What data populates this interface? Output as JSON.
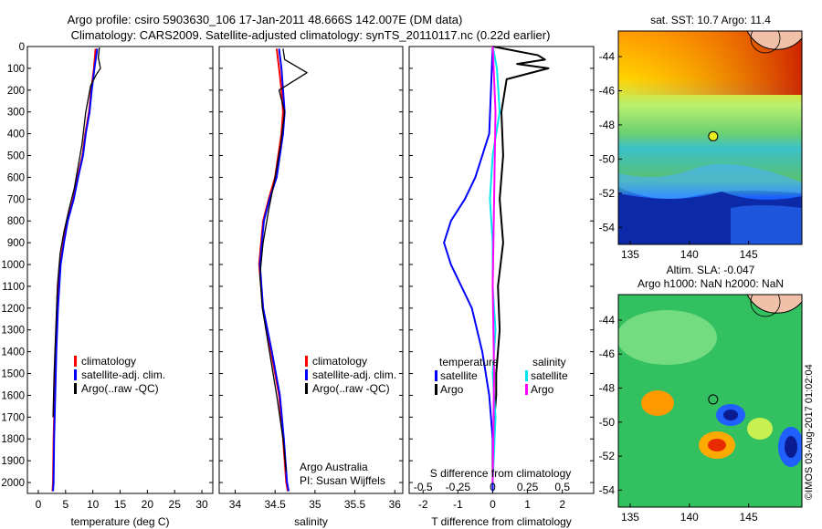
{
  "title_line1": "Argo profile: csiro 5903630_106 17-Jan-2011 48.666S 142.007E (DM data)",
  "title_line2": "Climatology: CARS2009. Satellite-adjusted climatology: synTS_20110117.nc (0.22d earlier)",
  "credit": "Argo Australia",
  "pi": "PI: Susan Wijffels",
  "stamp": "©IMOS 03-Aug-2017 01:02:04",
  "colors": {
    "climatology": "#ff0000",
    "satellite": "#0000ff",
    "argo": "#000000",
    "sal_satellite": "#00e5ee",
    "sal_argo": "#ff00ff"
  },
  "chart_data": [
    {
      "type": "line",
      "xlabel": "temperature (deg C)",
      "xlim": [
        -2,
        32
      ],
      "xticks": [
        "0",
        "5",
        "10",
        "15",
        "20",
        "25",
        "30"
      ],
      "ylim": [
        0,
        2050
      ],
      "yticks": [
        "0",
        "100",
        "200",
        "300",
        "400",
        "500",
        "600",
        "700",
        "800",
        "900",
        "1000",
        "1100",
        "1200",
        "1300",
        "1400",
        "1500",
        "1600",
        "1700",
        "1800",
        "1900",
        "2000"
      ],
      "legend": [
        "climatology",
        "satellite-adj. clim.",
        "Argo(..raw -QC)"
      ],
      "series": [
        {
          "name": "climatology",
          "x": [
            10.5,
            10.2,
            9.7,
            9.3,
            8.6,
            8.1,
            7.2,
            6.4,
            5.3,
            4.6,
            4.0,
            3.5,
            3.2,
            3.0,
            2.8,
            2.7,
            2.6
          ],
          "y": [
            10,
            100,
            200,
            300,
            400,
            500,
            600,
            700,
            800,
            900,
            1000,
            1200,
            1400,
            1600,
            1800,
            2000,
            2040
          ]
        },
        {
          "name": "satellite-adj. clim.",
          "x": [
            10.8,
            10.3,
            9.8,
            9.4,
            8.7,
            8.2,
            7.3,
            6.5,
            5.4,
            4.7,
            4.1,
            3.6,
            3.3,
            3.1,
            2.9,
            2.8,
            2.7
          ],
          "y": [
            10,
            100,
            200,
            300,
            400,
            500,
            600,
            700,
            800,
            900,
            1000,
            1200,
            1400,
            1600,
            1800,
            2000,
            2040
          ]
        },
        {
          "name": "Argo(..raw -QC)",
          "x": [
            11.2,
            11.0,
            11.4,
            10.6,
            9.6,
            8.7,
            8.0,
            7.3,
            6.6,
            5.6,
            4.7,
            4.0,
            3.5,
            3.2,
            2.9,
            2.7
          ],
          "y": [
            5,
            50,
            100,
            130,
            180,
            300,
            450,
            550,
            650,
            750,
            850,
            950,
            1100,
            1300,
            1500,
            1700
          ]
        }
      ]
    },
    {
      "type": "line",
      "xlabel": "salinity",
      "xlim": [
        33.8,
        36.1
      ],
      "xticks": [
        "34",
        "34.5",
        "35",
        "35.5",
        "36"
      ],
      "ylim": [
        0,
        2050
      ],
      "legend": [
        "climatology",
        "satellite-adj. clim.",
        "Argo(..raw -QC)"
      ],
      "series": [
        {
          "name": "climatology",
          "x": [
            34.52,
            34.55,
            34.58,
            34.6,
            34.58,
            34.5,
            34.42,
            34.35,
            34.3,
            34.35,
            34.45,
            34.55,
            34.6,
            34.64,
            34.66
          ],
          "y": [
            10,
            100,
            200,
            300,
            400,
            600,
            700,
            800,
            1000,
            1200,
            1400,
            1600,
            1800,
            2000,
            2040
          ]
        },
        {
          "name": "satellite-adj. clim.",
          "x": [
            34.55,
            34.58,
            34.6,
            34.62,
            34.6,
            34.52,
            34.43,
            34.36,
            34.31,
            34.35,
            34.46,
            34.56,
            34.61,
            34.65,
            34.67
          ],
          "y": [
            10,
            100,
            200,
            300,
            400,
            600,
            700,
            800,
            1000,
            1200,
            1400,
            1600,
            1800,
            2000,
            2040
          ]
        },
        {
          "name": "Argo(..raw -QC)",
          "x": [
            34.6,
            34.62,
            34.9,
            34.55,
            34.62,
            34.57,
            34.5,
            34.42,
            34.35,
            34.31,
            34.34,
            34.43,
            34.52,
            34.6,
            34.64
          ],
          "y": [
            10,
            60,
            120,
            200,
            300,
            450,
            600,
            750,
            900,
            1050,
            1200,
            1400,
            1600,
            1800,
            1950
          ]
        }
      ]
    },
    {
      "type": "line",
      "xlabel": "T difference from climatology",
      "xticks": [
        "-2",
        "-1",
        "0",
        "1",
        "2"
      ],
      "x2label": "S difference from climatology",
      "x2ticks": [
        "-0.5",
        "-0.25",
        "0",
        "0.25",
        "0.5"
      ],
      "xlim": [
        -2.4,
        2.9
      ],
      "ylim": [
        0,
        2050
      ],
      "legend_titles": [
        "temperature",
        "salinity"
      ],
      "legend": [
        "satellite",
        "Argo",
        "satellite",
        "Argo"
      ],
      "series": [
        {
          "name": "satellite",
          "x": [
            0,
            -0.05,
            -0.1,
            -0.3,
            -0.5,
            -0.8,
            -1.2,
            -1.4,
            -1.2,
            -0.9,
            -0.6,
            -0.3,
            -0.1,
            0,
            0
          ],
          "y": [
            0,
            200,
            400,
            500,
            600,
            700,
            800,
            900,
            1000,
            1100,
            1200,
            1400,
            1600,
            1800,
            2040
          ]
        },
        {
          "name": "Argo",
          "x": [
            0,
            1.3,
            1.5,
            0.7,
            1.6,
            0.4,
            0.25,
            0.3,
            0.2,
            0.3,
            0.15,
            0.2,
            0.1,
            0.1,
            0.05,
            0,
            0
          ],
          "y": [
            0,
            40,
            60,
            80,
            100,
            150,
            300,
            500,
            700,
            900,
            1100,
            1300,
            1500,
            1600,
            1700,
            1900,
            2000
          ]
        },
        {
          "name": "satellite",
          "x": [
            0,
            0.03,
            0.05,
            0,
            -0.02,
            0,
            0,
            0.02,
            0,
            0.02,
            0
          ],
          "y": [
            0,
            100,
            300,
            500,
            700,
            900,
            1100,
            1300,
            1500,
            1700,
            2000
          ]
        },
        {
          "name": "Argo",
          "x": [
            0,
            0.02,
            0.01,
            0,
            0.01,
            0
          ],
          "y": [
            0,
            300,
            700,
            1100,
            1500,
            2000
          ]
        }
      ]
    },
    {
      "type": "heatmap",
      "title": "sat. SST: 10.7  Argo: 11.4",
      "xticks": [
        "135",
        "140",
        "145"
      ],
      "yticks": [
        "-44",
        "-46",
        "-48",
        "-50",
        "-52",
        "-54"
      ],
      "xlim": [
        134,
        149.5
      ],
      "ylim": [
        -55,
        -42.5
      ],
      "marker": {
        "x": 142.007,
        "y": -48.666
      }
    },
    {
      "type": "heatmap",
      "title": "Altim. SLA: -0.047",
      "subtitle": "Argo h1000: NaN h2000: NaN",
      "xticks": [
        "135",
        "140",
        "145"
      ],
      "yticks": [
        "-44",
        "-46",
        "-48",
        "-50",
        "-52",
        "-54"
      ],
      "xlim": [
        134,
        149.5
      ],
      "ylim": [
        -55,
        -42.5
      ],
      "marker": {
        "x": 142.007,
        "y": -48.666
      }
    }
  ]
}
